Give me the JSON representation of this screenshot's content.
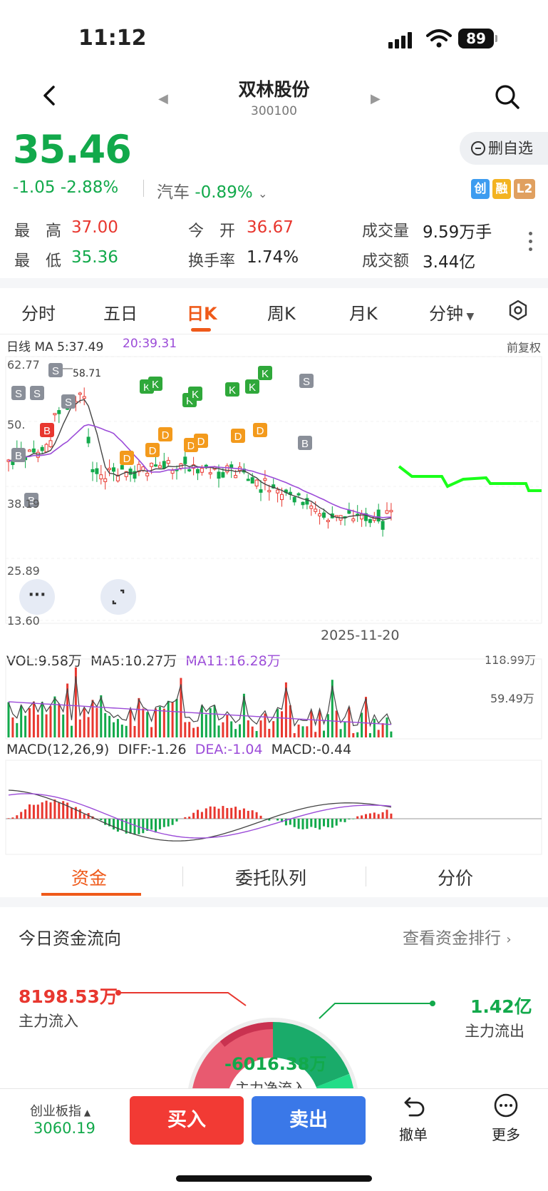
{
  "status_bar": {
    "time": "11:12",
    "battery": "89"
  },
  "header": {
    "title": "双林股份",
    "code": "300100"
  },
  "quote": {
    "price": "35.46",
    "change": "-1.05",
    "change_pct": "-2.88%",
    "sector_name": "汽车",
    "sector_change": "-0.89%",
    "remove_watch_label": "删自选",
    "badges": [
      "创",
      "融",
      "L2"
    ],
    "stats": {
      "high_label": "最　高",
      "high": "37.00",
      "low_label": "最　低",
      "low": "35.36",
      "open_label": "今　开",
      "open": "36.67",
      "turnover_label": "换手率",
      "turnover": "1.74%",
      "volume_label": "成交量",
      "volume": "9.59万手",
      "amount_label": "成交额",
      "amount": "3.44亿"
    }
  },
  "tabs": [
    "分时",
    "五日",
    "日K",
    "周K",
    "月K",
    "分钟"
  ],
  "active_tab": "日K",
  "kline": {
    "ma_line": "日线 MA 5:37.49",
    "ma_line2": "20:39.31",
    "adjust": "前复权",
    "y_ticks": [
      "62.77",
      "50.",
      "38.19",
      "25.89",
      "13.60"
    ],
    "peak_label": "58.71",
    "date": "2025-11-20",
    "colors": {
      "up": "#e8372f",
      "down": "#12a94b",
      "ma5": "#444444",
      "ma20": "#9b4bd8",
      "forecast": "#1aff1a"
    }
  },
  "volume": {
    "vol": "VOL:9.58万",
    "ma5": "MA5:10.27万",
    "ma11": "MA11:16.28万",
    "max": "118.99万",
    "mid": "59.49万"
  },
  "macd": {
    "title": "MACD(12,26,9)",
    "diff": "DIFF:-1.26",
    "dea": "DEA:-1.04",
    "macd": "MACD:-0.44"
  },
  "fund_tabs": [
    "资金",
    "委托队列",
    "分价"
  ],
  "fund_flow": {
    "title": "今日资金流向",
    "link": "查看资金排行",
    "inflow_value": "8198.53万",
    "inflow_label": "主力流入",
    "outflow_value": "1.42亿",
    "outflow_label": "主力流出",
    "net_value": "-6016.38万",
    "net_label": "主力净流入"
  },
  "bottom_bar": {
    "index_name": "创业板指",
    "index_value": "3060.19",
    "buy": "买入",
    "sell": "卖出",
    "cancel": "撤单",
    "more": "更多"
  }
}
